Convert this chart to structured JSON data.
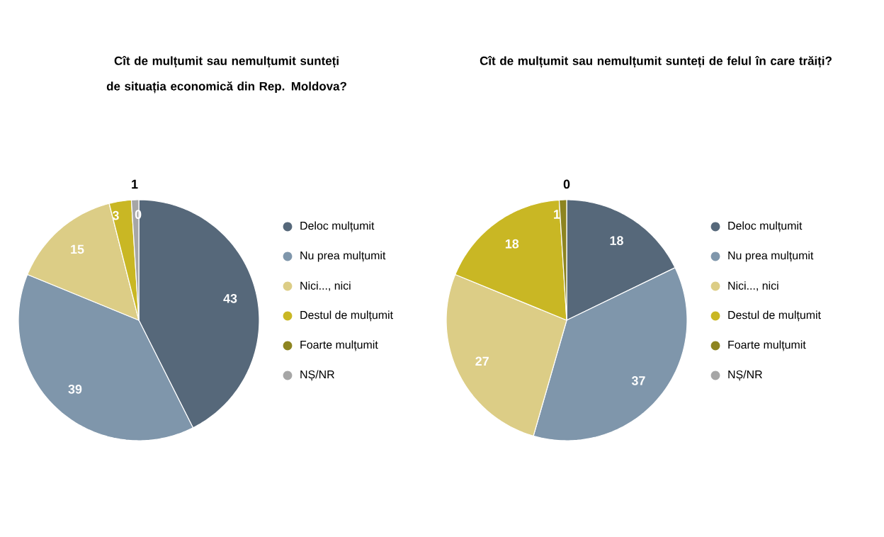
{
  "chart_data": [
    {
      "type": "pie",
      "title": "Cît de mulțumit sau nemulțumit sunteți de situația economică din Rep. Moldova?",
      "categories": [
        "Deloc mulțumit",
        "Nu prea mulțumit",
        "Nici..., nici",
        "Destul de mulțumit",
        "Foarte mulțumit",
        "NȘ/NR"
      ],
      "values": [
        43,
        39,
        15,
        3,
        0,
        1
      ],
      "value_labels": [
        "43",
        "39",
        "15",
        "3",
        "0",
        "1"
      ],
      "colors": [
        "#56687a",
        "#7f96ab",
        "#dccd86",
        "#c9b724",
        "#8d8420",
        "#a6a6a6"
      ],
      "legend": "right"
    },
    {
      "type": "pie",
      "title": "Cît de mulțumit sau nemulțumit sunteți de felul în care trăiți?",
      "categories": [
        "Deloc mulțumit",
        "Nu prea mulțumit",
        "Nici..., nici",
        "Destul de mulțumit",
        "Foarte mulțumit",
        "NȘ/NR"
      ],
      "values": [
        18,
        37,
        27,
        18,
        1,
        0
      ],
      "value_labels": [
        "18",
        "37",
        "27",
        "18",
        "1",
        "0"
      ],
      "colors": [
        "#56687a",
        "#7f96ab",
        "#dccd86",
        "#c9b724",
        "#8d8420",
        "#a6a6a6"
      ],
      "legend": "right"
    }
  ]
}
